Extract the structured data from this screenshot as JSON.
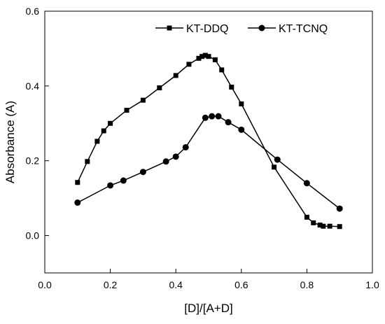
{
  "chart_data": {
    "type": "line",
    "title": "",
    "xlabel": "[D]/[A+D]",
    "ylabel": "Absorbance (A)",
    "xlim": [
      0.0,
      1.0
    ],
    "ylim": [
      -0.1,
      0.6
    ],
    "xticks": [
      0.0,
      0.2,
      0.4,
      0.6,
      0.8,
      1.0
    ],
    "xtick_labels": [
      "0.0",
      "0.2",
      "0.4",
      "0.6",
      "0.8",
      "1.0"
    ],
    "yticks": [
      0.0,
      0.2,
      0.4,
      0.6
    ],
    "ytick_labels": [
      "0.0",
      "0.2",
      "0.4",
      "0.6"
    ],
    "grid": false,
    "legend_position": "top-right",
    "series": [
      {
        "name": "KT-DDQ",
        "marker": "square",
        "color": "#000000",
        "x": [
          0.1,
          0.13,
          0.16,
          0.18,
          0.2,
          0.25,
          0.3,
          0.35,
          0.4,
          0.44,
          0.47,
          0.48,
          0.49,
          0.5,
          0.52,
          0.54,
          0.57,
          0.6,
          0.7,
          0.8,
          0.82,
          0.84,
          0.85,
          0.87,
          0.9
        ],
        "y": [
          0.142,
          0.198,
          0.252,
          0.28,
          0.3,
          0.335,
          0.362,
          0.395,
          0.428,
          0.458,
          0.474,
          0.479,
          0.482,
          0.479,
          0.47,
          0.443,
          0.397,
          0.352,
          0.183,
          0.049,
          0.034,
          0.028,
          0.025,
          0.025,
          0.024
        ]
      },
      {
        "name": "KT-TCNQ",
        "marker": "circle",
        "color": "#000000",
        "x": [
          0.1,
          0.2,
          0.24,
          0.3,
          0.37,
          0.4,
          0.43,
          0.49,
          0.51,
          0.53,
          0.56,
          0.6,
          0.71,
          0.8,
          0.9
        ],
        "y": [
          0.088,
          0.134,
          0.147,
          0.17,
          0.198,
          0.211,
          0.236,
          0.315,
          0.319,
          0.319,
          0.303,
          0.283,
          0.203,
          0.14,
          0.072
        ]
      }
    ]
  }
}
